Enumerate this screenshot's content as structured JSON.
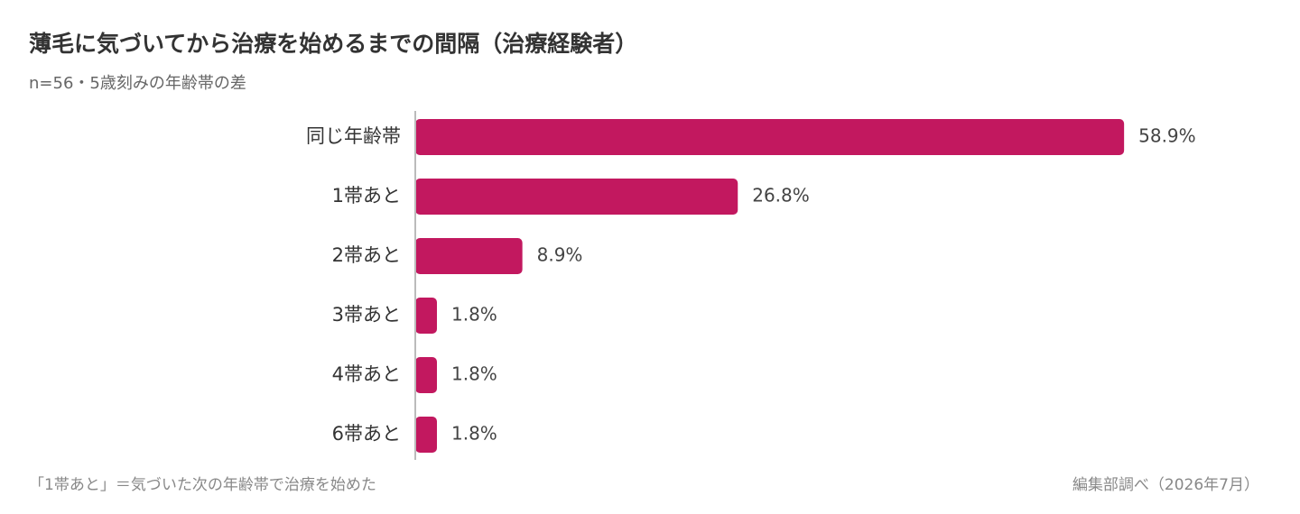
{
  "chart_data": {
    "type": "bar",
    "orientation": "horizontal",
    "title": "薄毛に気づいてから治療を始めるまでの間隔（治療経験者）",
    "subtitle": "n=56・5歳刻みの年齢帯の差",
    "categories": [
      "同じ年齢帯",
      "1帯あと",
      "2帯あと",
      "3帯あと",
      "4帯あと",
      "6帯あと"
    ],
    "values": [
      58.9,
      26.8,
      8.9,
      1.8,
      1.8,
      1.8
    ],
    "value_labels": [
      "58.9%",
      "26.8%",
      "8.9%",
      "1.8%",
      "1.8%",
      "1.8%"
    ],
    "color": "#c2185f",
    "note": "「1帯あと」＝気づいた次の年齢帯で治療を始めた",
    "source": "編集部調べ（2026年7月）"
  }
}
